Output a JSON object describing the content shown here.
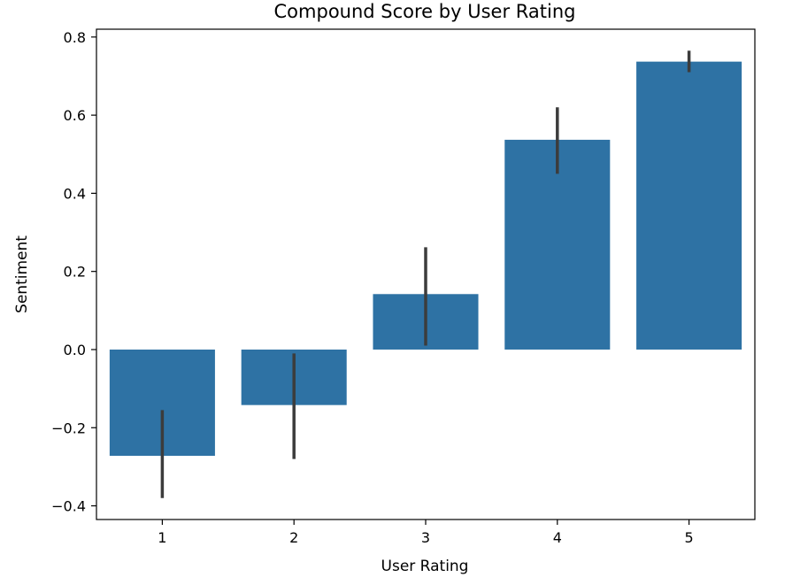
{
  "chart_data": {
    "type": "bar",
    "title": "Compound Score by User Rating",
    "xlabel": "User Rating",
    "ylabel": "Sentiment",
    "categories": [
      "1",
      "2",
      "3",
      "4",
      "5"
    ],
    "values": [
      -0.272,
      -0.142,
      0.142,
      0.537,
      0.737
    ],
    "error_low": [
      -0.38,
      -0.28,
      0.01,
      0.45,
      0.71
    ],
    "error_high": [
      -0.155,
      -0.01,
      0.262,
      0.62,
      0.765
    ],
    "ylim": [
      -0.435,
      0.82
    ],
    "yticks": [
      -0.4,
      -0.2,
      0.0,
      0.2,
      0.4,
      0.6,
      0.8
    ],
    "ytick_labels": [
      "−0.4",
      "−0.2",
      "0.0",
      "0.2",
      "0.4",
      "0.6",
      "0.8"
    ],
    "grid": false,
    "legend": "none",
    "bar_color": "#2e72a4",
    "errorbar_color": "#3c3c3c"
  }
}
